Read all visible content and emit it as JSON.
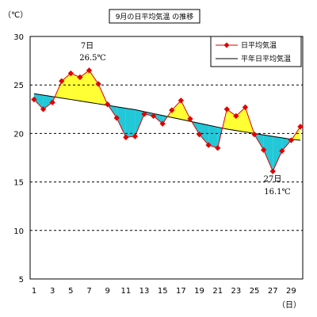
{
  "chart_data": {
    "type": "line",
    "title": "9月の日平均気温 の推移",
    "y_unit_label": "（℃）",
    "x_unit_label": "（日）",
    "ylim": [
      5,
      30
    ],
    "yticks": [
      5,
      10,
      15,
      20,
      25,
      30
    ],
    "xlim": [
      1,
      30
    ],
    "xticks": [
      1,
      3,
      5,
      7,
      9,
      11,
      13,
      15,
      17,
      19,
      21,
      23,
      25,
      27,
      29
    ],
    "grid": "horizontal dashed",
    "legend_position": "top-right",
    "x": [
      1,
      2,
      3,
      4,
      5,
      6,
      7,
      8,
      9,
      10,
      11,
      12,
      13,
      14,
      15,
      16,
      17,
      18,
      19,
      20,
      21,
      22,
      23,
      24,
      25,
      26,
      27,
      28,
      29,
      30
    ],
    "series": [
      {
        "name": "日平均気温",
        "color": "#e00000",
        "marker": "diamond",
        "values": [
          23.5,
          22.5,
          23.2,
          25.4,
          26.2,
          25.8,
          26.5,
          25.1,
          23.0,
          21.6,
          19.6,
          19.7,
          22.0,
          21.8,
          21.0,
          22.4,
          23.4,
          21.5,
          19.9,
          18.8,
          18.5,
          22.5,
          21.8,
          22.7,
          19.9,
          18.3,
          16.1,
          18.2,
          19.3,
          20.7
        ]
      },
      {
        "name": "平年日平均気温",
        "color": "#000000",
        "values": [
          24.1,
          23.95,
          23.8,
          23.65,
          23.5,
          23.35,
          23.2,
          23.05,
          22.9,
          22.75,
          22.6,
          22.45,
          22.25,
          22.05,
          21.85,
          21.65,
          21.45,
          21.25,
          21.05,
          20.85,
          20.65,
          20.45,
          20.3,
          20.15,
          20.0,
          19.85,
          19.7,
          19.55,
          19.4,
          19.3
        ]
      }
    ],
    "fill_above_color": "#ffff33",
    "fill_below_color": "#22c8d8",
    "annotations": [
      {
        "day": 7,
        "line1": "7日",
        "line2": "26.5℃",
        "side": "above"
      },
      {
        "day": 27,
        "line1": "27日",
        "line2": "16.1℃",
        "side": "below"
      }
    ]
  }
}
